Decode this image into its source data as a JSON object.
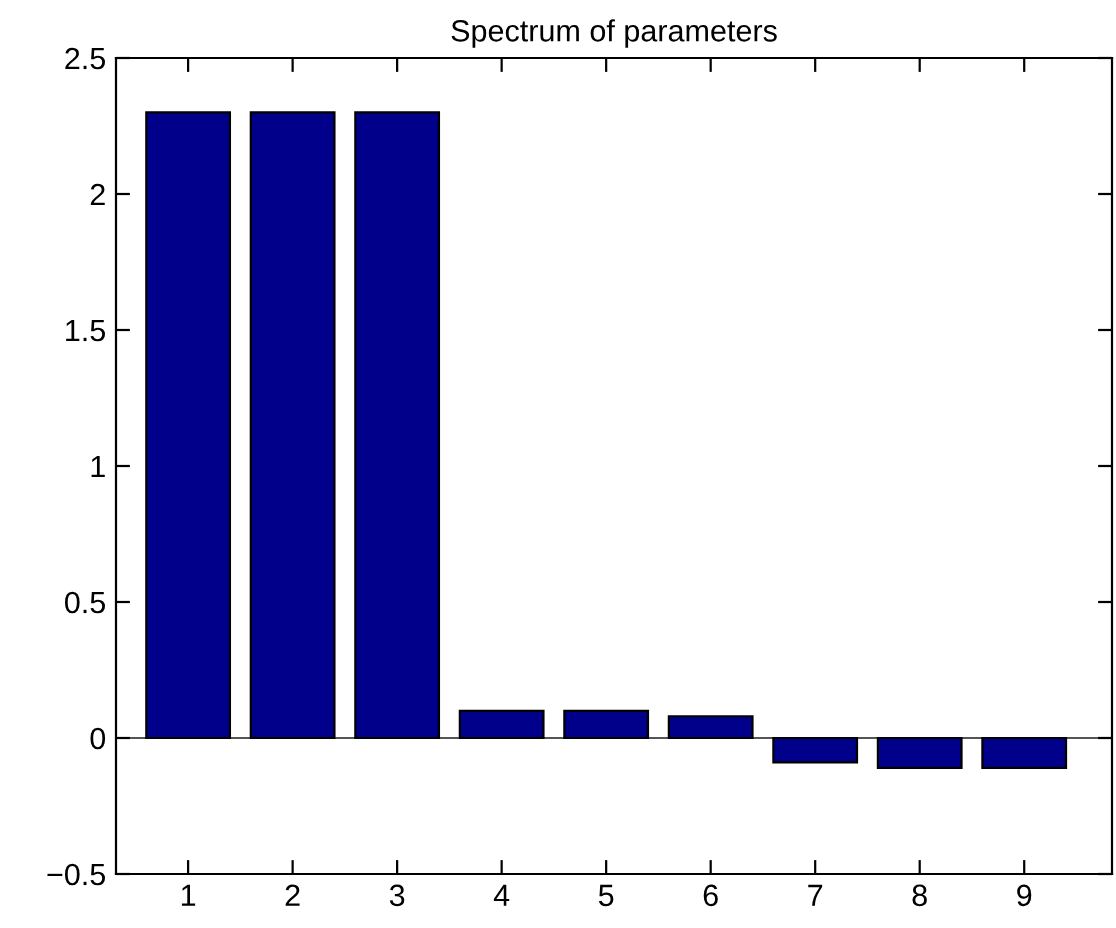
{
  "chart_data": {
    "type": "bar",
    "title": "Spectrum of parameters",
    "categories": [
      "1",
      "2",
      "3",
      "4",
      "5",
      "6",
      "7",
      "8",
      "9"
    ],
    "values": [
      2.3,
      2.3,
      2.3,
      0.1,
      0.1,
      0.08,
      -0.09,
      -0.11,
      -0.11
    ],
    "color": "#00008b",
    "ylim": [
      -0.5,
      2.5
    ],
    "yticks": [
      {
        "value": -0.5,
        "label": "−0.5"
      },
      0,
      0.5,
      1,
      1.5,
      2,
      2.5
    ],
    "ref_lines": [
      {
        "axis": "y",
        "value": 0,
        "color": "#555555"
      }
    ]
  }
}
